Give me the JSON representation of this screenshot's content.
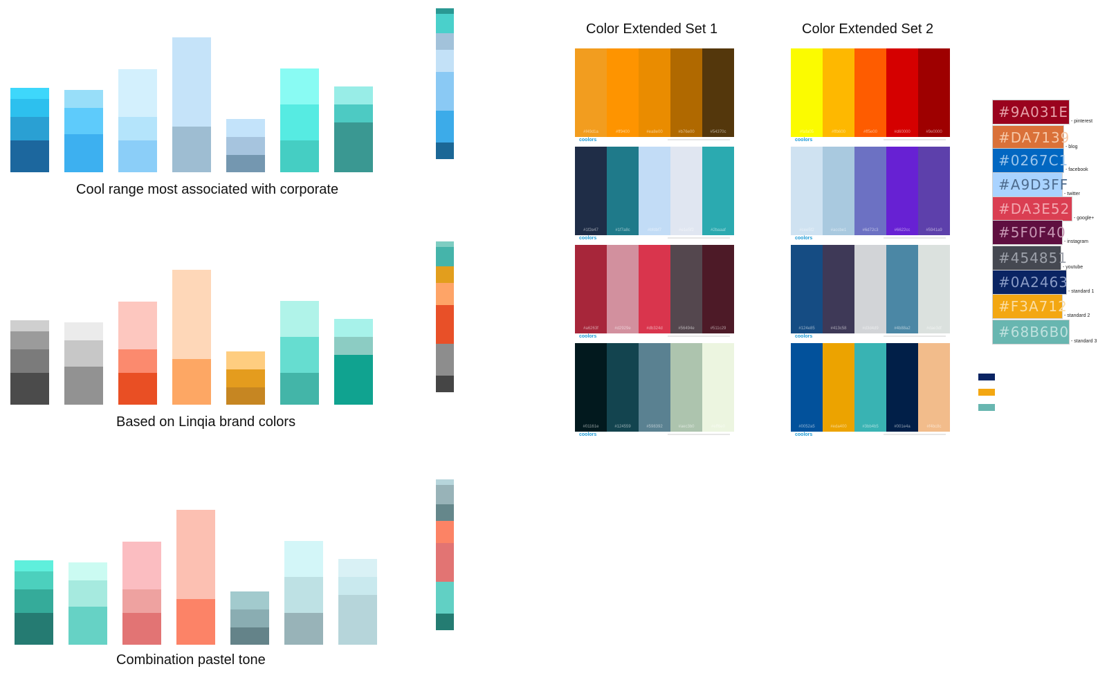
{
  "groups": [
    {
      "caption": "Cool range most associated with corporate",
      "bars": [
        [
          "#1c679e",
          "#2aa0d3",
          "#2dc0ee",
          "#3ed7fb"
        ],
        [
          "#3db0f0",
          "#5ecbfb",
          "#98def9"
        ],
        [
          "#8bcef8",
          "#b4e4fb",
          "#d3f0fd"
        ],
        [
          "#9ebdd2",
          "#c5e3f9"
        ],
        [
          "#7497b0",
          "#a6c4de",
          "#c3e3fa"
        ],
        [
          "#45cec3",
          "#56ebe2",
          "#89fbf3"
        ],
        [
          "#3a9892",
          "#4dcac3",
          "#98ede7"
        ]
      ],
      "strip": [
        "#1b6796",
        "#3cabe9",
        "#8ac9f4",
        "#c3e1f7",
        "#a2c2da",
        "#4ad0cb",
        "#2a9893"
      ]
    },
    {
      "caption": "Based on Linqia brand colors",
      "bars": [
        [
          "#4b4b4b",
          "#7b7b7b",
          "#9b9b9b",
          "#cfcfcf"
        ],
        [
          "#929292",
          "#c7c7c7",
          "#ebebeb"
        ],
        [
          "#e94f24",
          "#fb8a6e",
          "#fdc7bf"
        ],
        [
          "#fda764",
          "#fed7b8"
        ],
        [
          "#c68622",
          "#e49c1e",
          "#fecd80"
        ],
        [
          "#43b5a8",
          "#66ddd0",
          "#b0f3e9"
        ],
        [
          "#10a390",
          "#8cccc3",
          "#a7f2ea"
        ]
      ],
      "strip": [
        "#454545",
        "#8d8d8d",
        "#e85028",
        "#fea467",
        "#e29e1d",
        "#45b4aa",
        "#7ecdc2"
      ]
    },
    {
      "caption": "Combination pastel tone",
      "bars": [
        [
          "#257b72",
          "#35ab9a",
          "#4cd0bd",
          "#5fefdc"
        ],
        [
          "#66d2c5",
          "#a6eadf",
          "#cbfbf2"
        ],
        [
          "#e27474",
          "#eea2a0",
          "#fbbdc1"
        ],
        [
          "#fc8367",
          "#fcc0b2"
        ],
        [
          "#648389",
          "#8aadb2",
          "#a2cacd"
        ],
        [
          "#98b3b8",
          "#bee1e4",
          "#d3f6f8"
        ],
        [
          "#b6d5da",
          "#c9e9ee",
          "#d9f1f5"
        ]
      ],
      "strip": [
        "#247c72",
        "#61d0c4",
        "#e27473",
        "#fc8365",
        "#65878b",
        "#98b3b8",
        "#b6d5db"
      ]
    }
  ],
  "sets": [
    {
      "title": "Color Extended Set 1",
      "palettes": [
        {
          "colors": [
            "#f29d1f",
            "#fe9400",
            "#ea8c00",
            "#b06900",
            "#54370c"
          ],
          "hex": [
            "#f49d1a",
            "#ff9400",
            "#ea8e00",
            "#b76e00",
            "#54370c"
          ]
        },
        {
          "colors": [
            "#1f2d47",
            "#1f7a8a",
            "#c2dcf6",
            "#e0e6f1",
            "#2baab0"
          ],
          "hex": [
            "#1f2e47",
            "#1f7a8c",
            "#bfdbf7",
            "#e1e5f2",
            "#2baaaf"
          ]
        },
        {
          "colors": [
            "#a7263a",
            "#d2909e",
            "#d9354d",
            "#54474e",
            "#4d1a27"
          ],
          "hex": [
            "#a6263f",
            "#d2929e",
            "#db324d",
            "#56494e",
            "#511c29"
          ]
        },
        {
          "colors": [
            "#02191e",
            "#13444f",
            "#5a8191",
            "#adc4ae",
            "#ecf5e0"
          ],
          "hex": [
            "#01161e",
            "#124559",
            "#598392",
            "#aec3b0",
            "#eff6e0"
          ]
        }
      ],
      "brand": "coolors"
    },
    {
      "title": "Color Extended Set 2",
      "palettes": [
        {
          "colors": [
            "#fbfb00",
            "#feb800",
            "#fe5c00",
            "#d50000",
            "#9e0000"
          ],
          "hex": [
            "#fafa05",
            "#ffb600",
            "#ff5e00",
            "#d60000",
            "#9e0000"
          ]
        },
        {
          "colors": [
            "#cfe2f1",
            "#a9c9df",
            "#6c71c3",
            "#6721d3",
            "#5d40ab"
          ],
          "hex": [
            "#cee5f2",
            "#accbe1",
            "#6d72c3",
            "#6622cc",
            "#5941a9"
          ]
        },
        {
          "colors": [
            "#154c83",
            "#3e3957",
            "#d2d4d7",
            "#4b87a5",
            "#dbe1de"
          ],
          "hex": [
            "#124e85",
            "#413c58",
            "#d3d4d9",
            "#4b88a2",
            "#dae3df"
          ]
        },
        {
          "colors": [
            "#02519b",
            "#eca300",
            "#39b3b3",
            "#011f48",
            "#f2bc8b"
          ],
          "hex": [
            "#0052a5",
            "#eda400",
            "#3bb4b5",
            "#001e4a",
            "#f4bc8c"
          ]
        }
      ],
      "brand": "coolors"
    }
  ],
  "swatches": [
    {
      "code": "#9A031E",
      "color": "#9a031e",
      "text": "#e6a0a8",
      "label": "- pinterest"
    },
    {
      "code": "#DA7139",
      "color": "#da7139",
      "text": "#f6c9a9",
      "label": "- blog"
    },
    {
      "code": "#0267C1",
      "color": "#0267c1",
      "text": "#9ec6ec",
      "label": "- facebook"
    },
    {
      "code": "#A9D3FF",
      "color": "#a9d3ff",
      "text": "#4d6b8d",
      "label": "- twitter"
    },
    {
      "code": "#DA3E52",
      "color": "#da3e52",
      "text": "#f3a8b0",
      "label": "- google+"
    },
    {
      "code": "#5F0F40",
      "color": "#5f0f40",
      "text": "#c798b4",
      "label": "- instagram"
    },
    {
      "code": "#454851",
      "color": "#454851",
      "text": "#9ea2ab",
      "label": "- youtube"
    },
    {
      "code": "#0A2463",
      "color": "#0a2463",
      "text": "#8b9cc6",
      "label": "- standard 1"
    },
    {
      "code": "#F3A712",
      "color": "#f3a712",
      "text": "#fbdda3",
      "label": "- standard 2"
    },
    {
      "code": "#68B6B0",
      "color": "#68b6b0",
      "text": "#bfe1de",
      "label": "- standard 3"
    }
  ],
  "mini_legend": [
    "#0a2463",
    "#f3a712",
    "#68b6b0"
  ]
}
